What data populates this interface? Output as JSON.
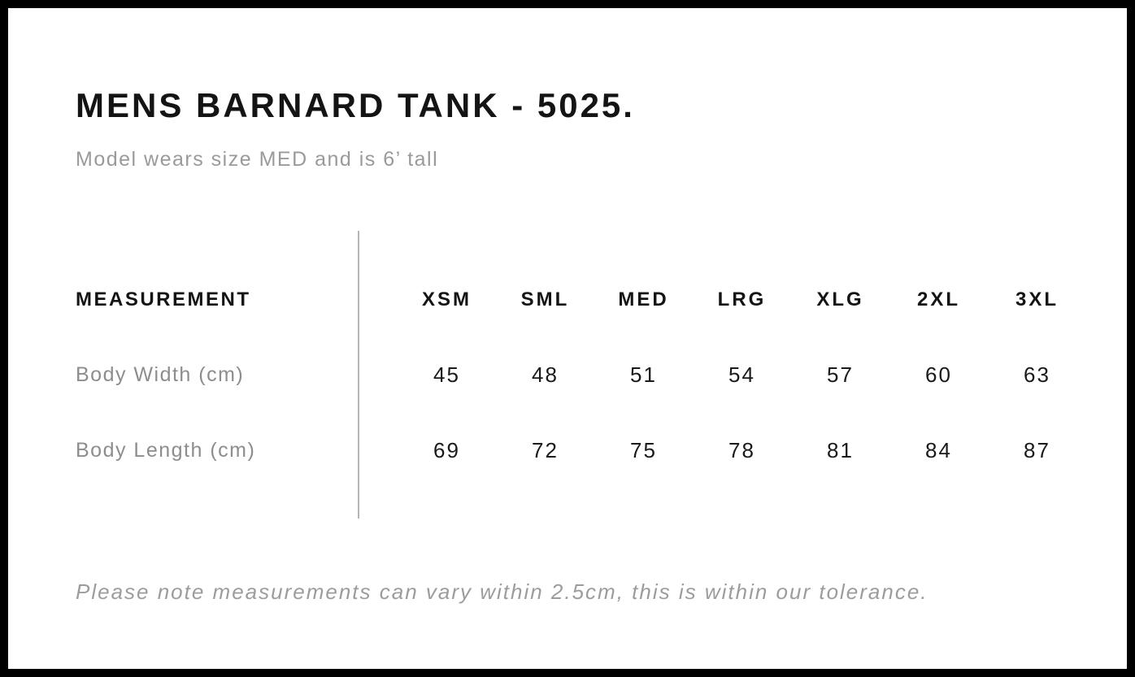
{
  "page": {
    "title": "MENS BARNARD TANK - 5025.",
    "subtitle": "Model wears size MED and is 6’ tall",
    "footnote": "Please note measurements can vary within 2.5cm, this is within our tolerance."
  },
  "size_chart": {
    "measurement_header": "MEASUREMENT",
    "sizes": [
      "XSM",
      "SML",
      "MED",
      "LRG",
      "XLG",
      "2XL",
      "3XL"
    ],
    "rows": [
      {
        "label": "Body Width (cm)",
        "values": [
          45,
          48,
          51,
          54,
          57,
          60,
          63
        ]
      },
      {
        "label": "Body Length (cm)",
        "values": [
          69,
          72,
          75,
          78,
          81,
          84,
          87
        ]
      }
    ]
  },
  "colors": {
    "frame": "#000000",
    "heading_ink": "#141414",
    "value_ink": "#1a1a1a",
    "muted_gray": "#9a9a9a",
    "label_gray": "#8d8d8d",
    "divider_gray": "#b5b5b5",
    "background": "#ffffff"
  }
}
